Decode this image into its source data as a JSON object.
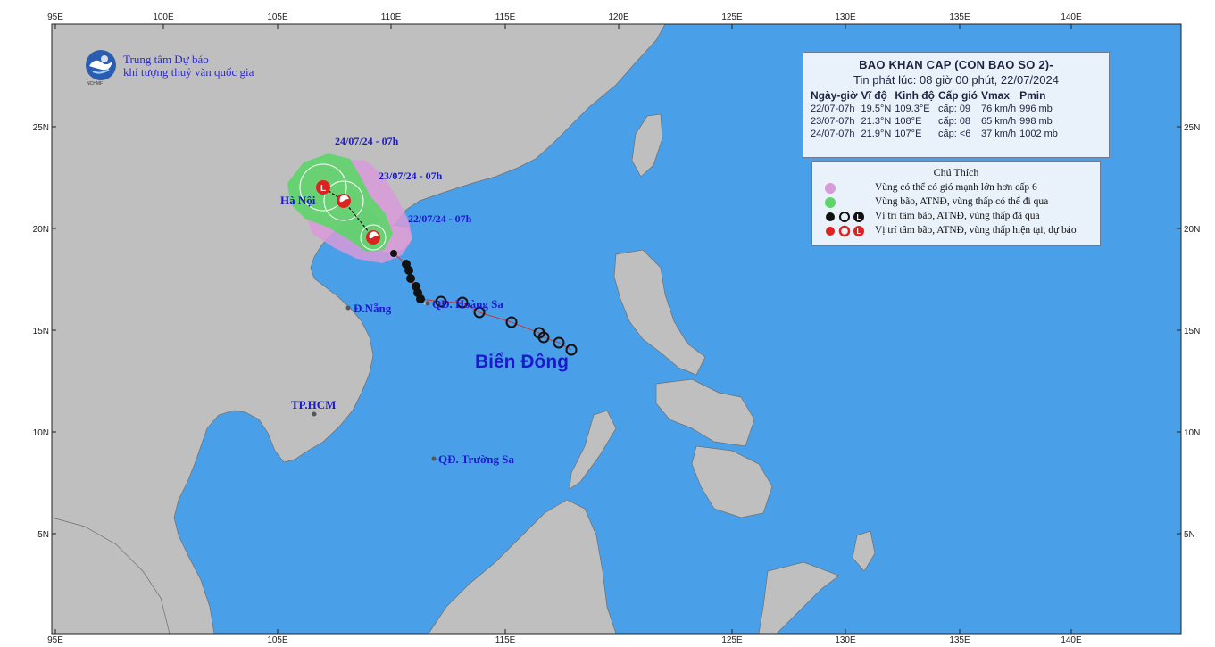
{
  "organization": {
    "line1": "Trung tâm Dự báo",
    "line2": "khí tượng thuỷ văn quốc gia",
    "logo_abbr": "NCHMF"
  },
  "map": {
    "lon_ticks_top": [
      "95E",
      "100E",
      "105E",
      "110E",
      "115E",
      "120E",
      "125E",
      "130E",
      "135E",
      "140E"
    ],
    "lon_ticks_bottom": [
      "95E",
      "105E",
      "115E",
      "125E",
      "130E",
      "135E",
      "140E"
    ],
    "lat_ticks": [
      "25N",
      "20N",
      "15N",
      "10N",
      "5N"
    ],
    "land_color": "#bfbfbf",
    "sea_color": "#4aa0e8",
    "track_color": "#cc3333",
    "places": {
      "hanoi": "Hà Nội",
      "danang": "Đ.Nẵng",
      "hoangsa": "QĐ. Hoàng Sa",
      "hcm": "TP.HCM",
      "truongsa": "QĐ. Trường Sa",
      "sea": "Biển Đông"
    },
    "forecast_labels": [
      "24/07/24 - 07h",
      "23/07/24 - 07h",
      "22/07/24 - 07h"
    ]
  },
  "bulletin": {
    "title": "BAO KHAN CAP (CON BAO SO 2)-",
    "issued": "Tin phát lúc: 08 giờ 00 phút, 22/07/2024",
    "columns": [
      "Ngày-giờ",
      "Vĩ độ",
      "Kinh độ",
      "Cấp gió",
      "Vmax",
      "Pmin"
    ],
    "rows": [
      [
        "22/07-07h",
        "19.5°N",
        "109.3°E",
        "cấp: 09",
        "76 km/h",
        "996 mb"
      ],
      [
        "23/07-07h",
        "21.3°N",
        "108°E",
        "cấp: 08",
        "65 km/h",
        "998 mb"
      ],
      [
        "24/07-07h",
        "21.9°N",
        "107°E",
        "cấp: <6",
        "37 km/h",
        "1002 mb"
      ]
    ]
  },
  "legend": {
    "title": "Chú Thích",
    "items": [
      {
        "text": "Vùng có thể có gió mạnh lớn hơn cấp 6",
        "color": "#d89ad8"
      },
      {
        "text": "Vùng bão, ATNĐ, vùng thấp có thể đi qua",
        "color": "#5fd46a"
      },
      {
        "text": "Vị trí tâm bão, ATNĐ, vùng thấp đã qua",
        "color": "#111111"
      },
      {
        "text": "Vị trí tâm bão, ATNĐ, vùng thấp hiện tại, dự báo",
        "color": "#dd2222"
      }
    ]
  }
}
